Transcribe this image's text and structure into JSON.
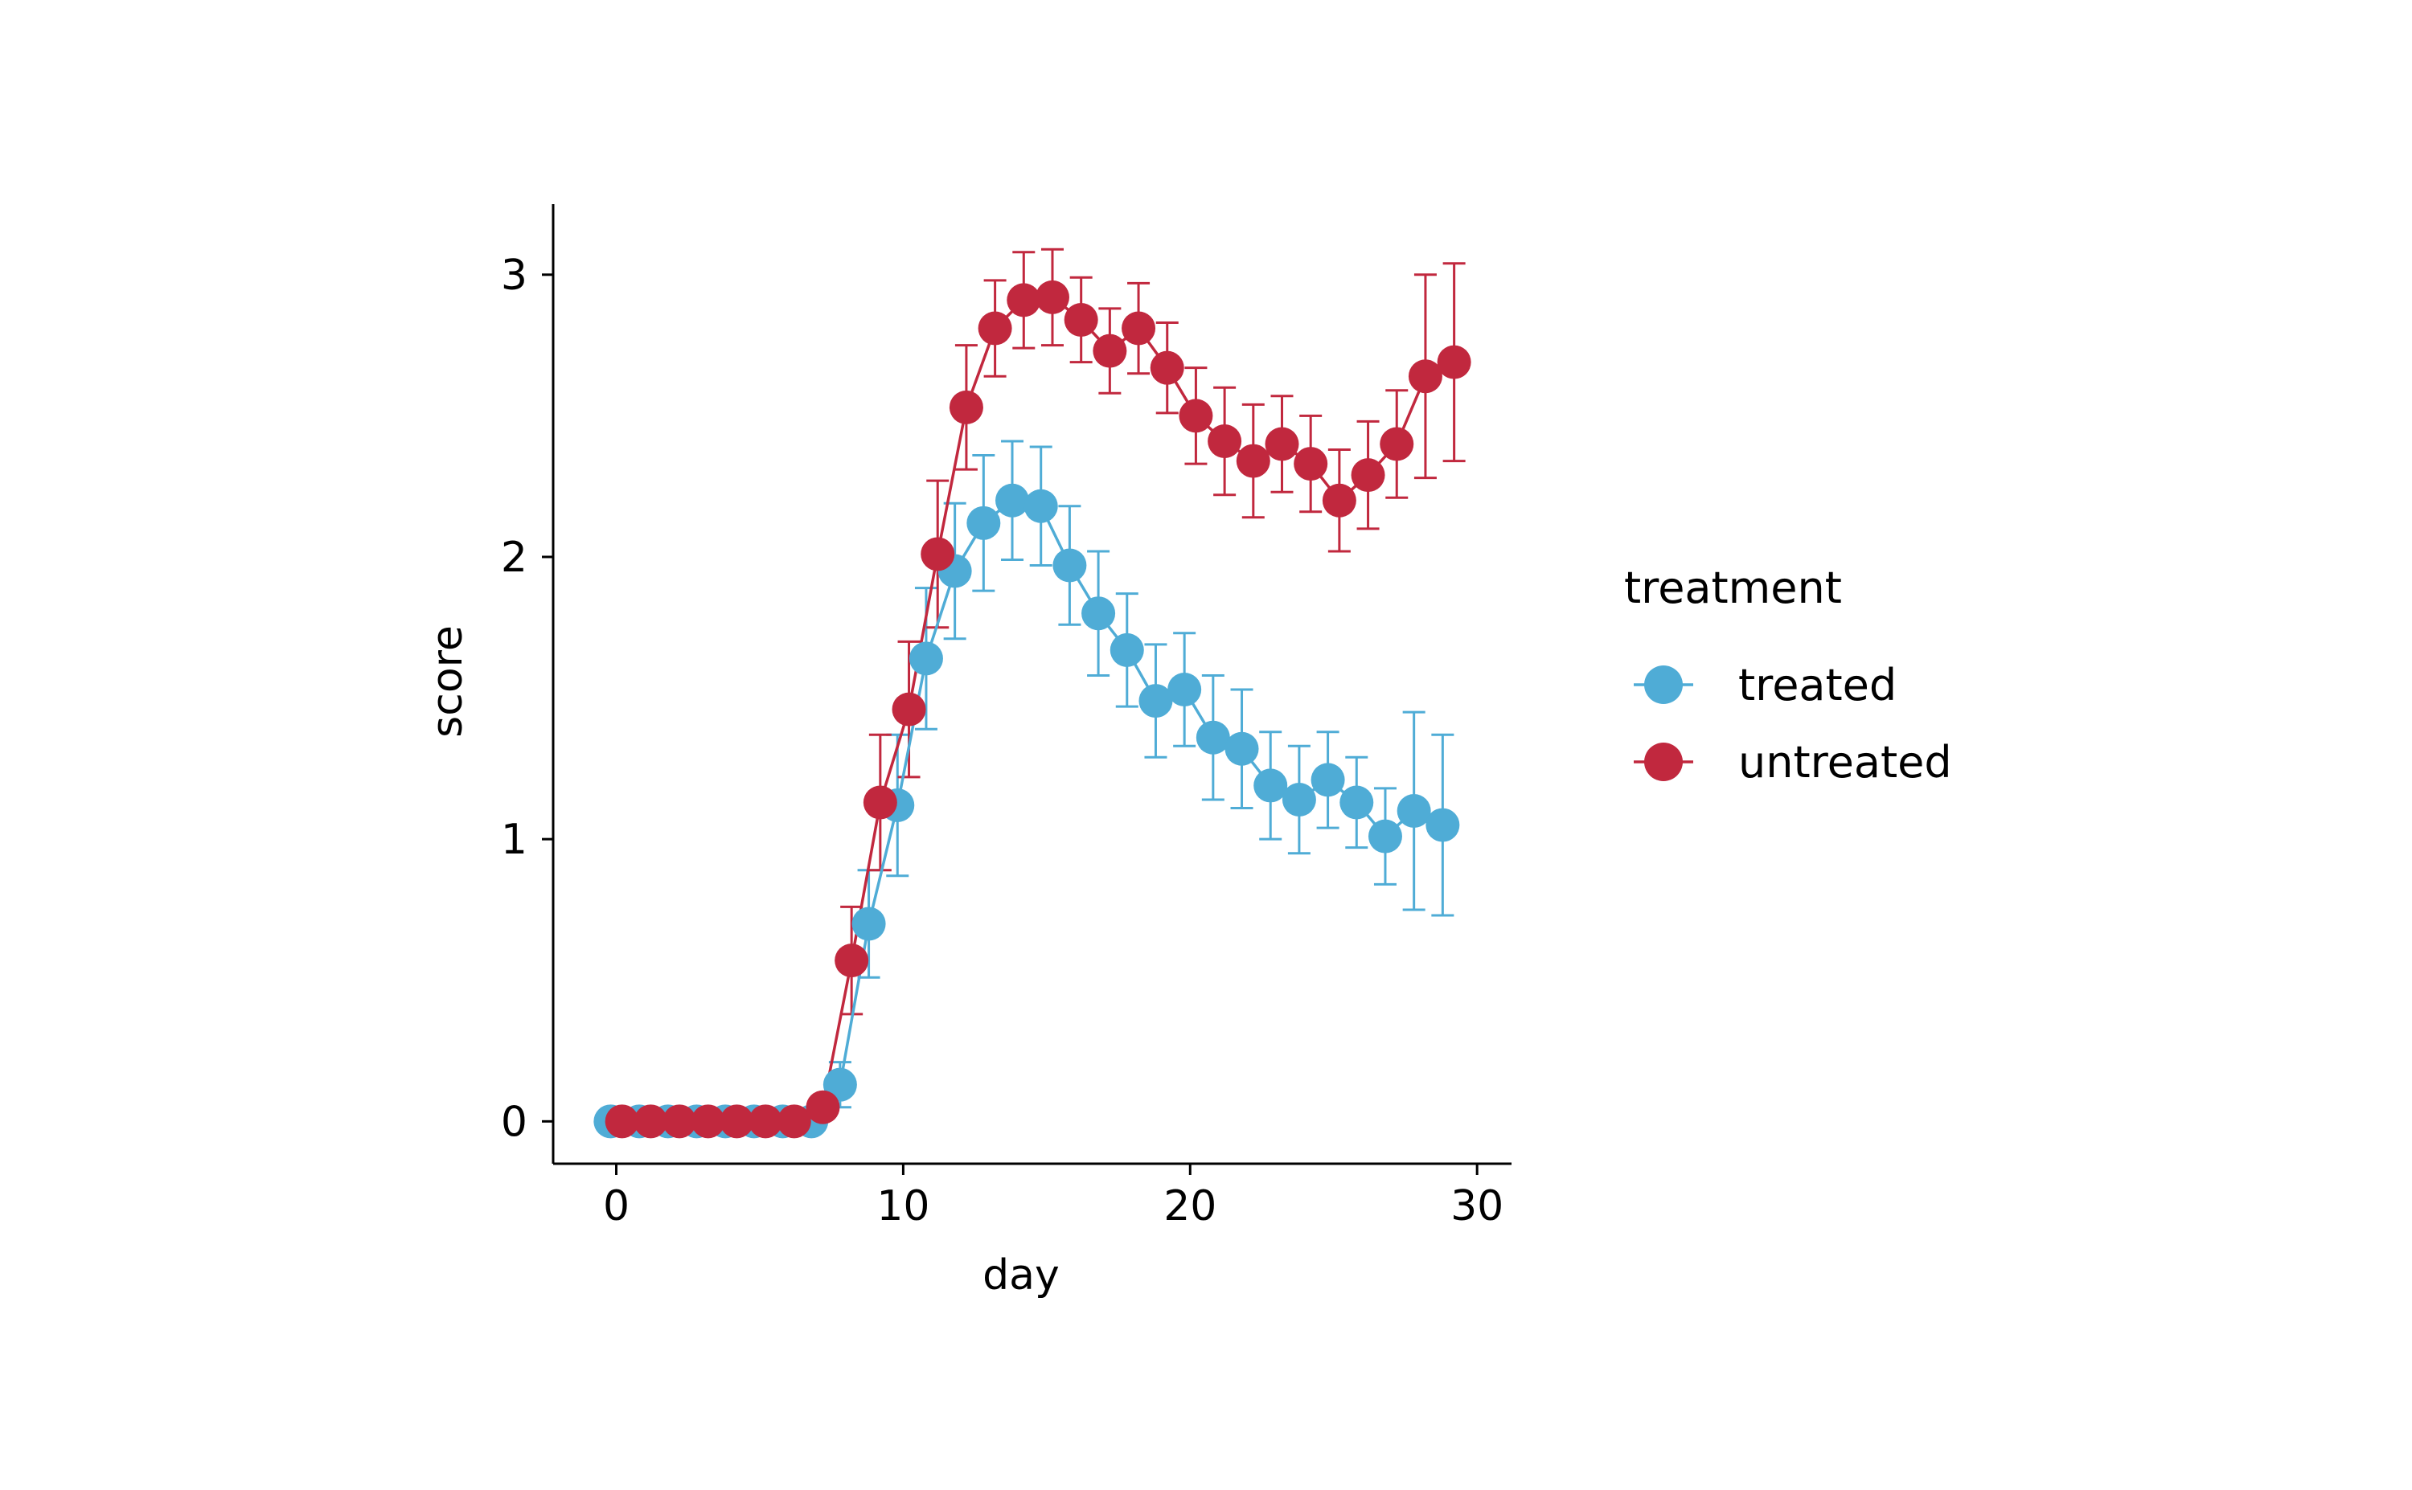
{
  "chart_data": {
    "type": "line",
    "xlabel": "day",
    "ylabel": "score",
    "xlim": [
      -2.2,
      31.2
    ],
    "ylim": [
      -0.15,
      3.25
    ],
    "x_ticks": [
      0,
      10,
      20,
      30
    ],
    "y_ticks": [
      0,
      1,
      2,
      3
    ],
    "grid": false,
    "legend": {
      "title": "treatment",
      "placement": "right"
    },
    "error_bars": true,
    "series": [
      {
        "name": "treated",
        "color": "#4FACD6",
        "points": [
          {
            "x": -0.2,
            "y": 0,
            "err": 0
          },
          {
            "x": 0.8,
            "y": 0,
            "err": 0
          },
          {
            "x": 1.8,
            "y": 0,
            "err": 0
          },
          {
            "x": 2.8,
            "y": 0,
            "err": 0
          },
          {
            "x": 3.8,
            "y": 0,
            "err": 0
          },
          {
            "x": 4.8,
            "y": 0,
            "err": 0
          },
          {
            "x": 5.8,
            "y": 0,
            "err": 0
          },
          {
            "x": 6.8,
            "y": 0,
            "err": 0
          },
          {
            "x": 7.8,
            "y": 0.13,
            "err": 0.08
          },
          {
            "x": 8.8,
            "y": 0.7,
            "err": 0.19
          },
          {
            "x": 9.8,
            "y": 1.12,
            "err": 0.25
          },
          {
            "x": 10.8,
            "y": 1.64,
            "err": 0.25
          },
          {
            "x": 11.8,
            "y": 1.95,
            "err": 0.24
          },
          {
            "x": 12.8,
            "y": 2.12,
            "err": 0.24
          },
          {
            "x": 13.8,
            "y": 2.2,
            "err": 0.21
          },
          {
            "x": 14.8,
            "y": 2.18,
            "err": 0.21
          },
          {
            "x": 15.8,
            "y": 1.97,
            "err": 0.21
          },
          {
            "x": 16.8,
            "y": 1.8,
            "err": 0.22
          },
          {
            "x": 17.8,
            "y": 1.67,
            "err": 0.2
          },
          {
            "x": 18.8,
            "y": 1.49,
            "err": 0.2
          },
          {
            "x": 19.8,
            "y": 1.53,
            "err": 0.2
          },
          {
            "x": 20.8,
            "y": 1.36,
            "err": 0.22
          },
          {
            "x": 21.8,
            "y": 1.32,
            "err": 0.21
          },
          {
            "x": 22.8,
            "y": 1.19,
            "err": 0.19
          },
          {
            "x": 23.8,
            "y": 1.14,
            "err": 0.19
          },
          {
            "x": 24.8,
            "y": 1.21,
            "err": 0.17
          },
          {
            "x": 25.8,
            "y": 1.13,
            "err": 0.16
          },
          {
            "x": 26.8,
            "y": 1.01,
            "err": 0.17
          },
          {
            "x": 27.8,
            "y": 1.1,
            "err": 0.35
          },
          {
            "x": 28.8,
            "y": 1.05,
            "err": 0.32
          }
        ]
      },
      {
        "name": "untreated",
        "color": "#C1283E",
        "points": [
          {
            "x": 0.2,
            "y": 0,
            "err": 0
          },
          {
            "x": 1.2,
            "y": 0,
            "err": 0
          },
          {
            "x": 2.2,
            "y": 0,
            "err": 0
          },
          {
            "x": 3.2,
            "y": 0,
            "err": 0
          },
          {
            "x": 4.2,
            "y": 0,
            "err": 0
          },
          {
            "x": 5.2,
            "y": 0,
            "err": 0
          },
          {
            "x": 6.2,
            "y": 0,
            "err": 0
          },
          {
            "x": 7.2,
            "y": 0.05,
            "err": 0.04
          },
          {
            "x": 8.2,
            "y": 0.57,
            "err": 0.19
          },
          {
            "x": 9.2,
            "y": 1.13,
            "err": 0.24
          },
          {
            "x": 10.2,
            "y": 1.46,
            "err": 0.24
          },
          {
            "x": 11.2,
            "y": 2.01,
            "err": 0.26
          },
          {
            "x": 12.2,
            "y": 2.53,
            "err": 0.22
          },
          {
            "x": 13.2,
            "y": 2.81,
            "err": 0.17
          },
          {
            "x": 14.2,
            "y": 2.91,
            "err": 0.17
          },
          {
            "x": 15.2,
            "y": 2.92,
            "err": 0.17
          },
          {
            "x": 16.2,
            "y": 2.84,
            "err": 0.15
          },
          {
            "x": 17.2,
            "y": 2.73,
            "err": 0.15
          },
          {
            "x": 18.2,
            "y": 2.81,
            "err": 0.16
          },
          {
            "x": 19.2,
            "y": 2.67,
            "err": 0.16
          },
          {
            "x": 20.2,
            "y": 2.5,
            "err": 0.17
          },
          {
            "x": 21.2,
            "y": 2.41,
            "err": 0.19
          },
          {
            "x": 22.2,
            "y": 2.34,
            "err": 0.2
          },
          {
            "x": 23.2,
            "y": 2.4,
            "err": 0.17
          },
          {
            "x": 24.2,
            "y": 2.33,
            "err": 0.17
          },
          {
            "x": 25.2,
            "y": 2.2,
            "err": 0.18
          },
          {
            "x": 26.2,
            "y": 2.29,
            "err": 0.19
          },
          {
            "x": 27.2,
            "y": 2.4,
            "err": 0.19
          },
          {
            "x": 28.2,
            "y": 2.64,
            "err": 0.36
          },
          {
            "x": 29.2,
            "y": 2.69,
            "err": 0.35
          }
        ]
      }
    ]
  }
}
